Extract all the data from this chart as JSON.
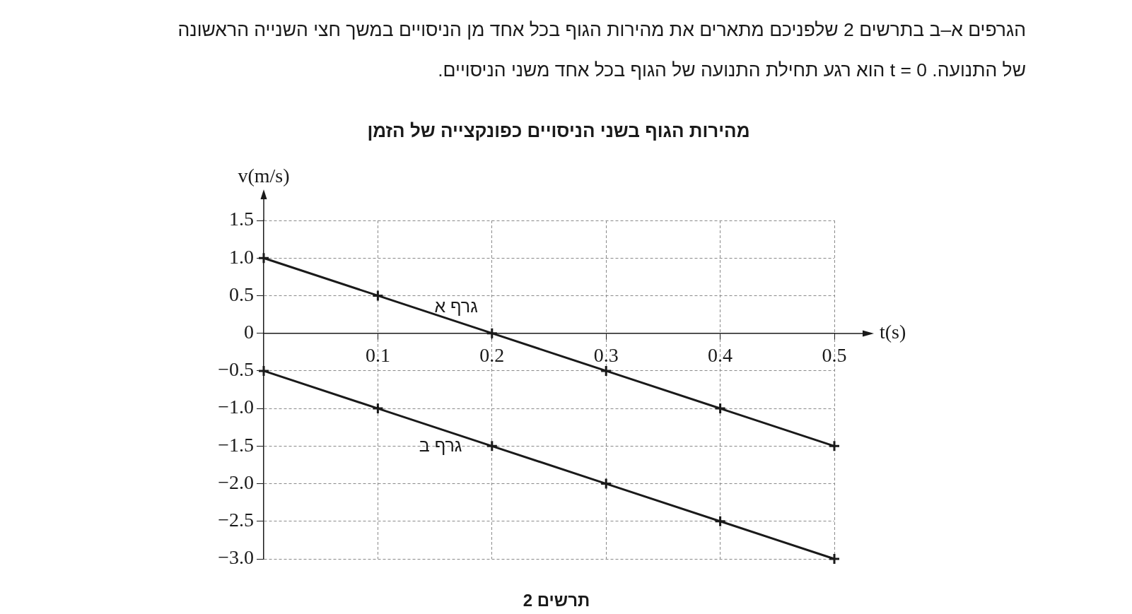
{
  "chart_data": {
    "type": "line",
    "title": "מהירות הגוף בשני הניסויים כפונקצייה של הזמן",
    "xlabel": "t(s)",
    "ylabel": "v(m/s)",
    "annotations": [
      "הגרפים א–ב בתרשים 2 שלפניכם מתארים את מהירות הגוף בכל אחד מן הניסויים במשך חצי השנייה הראשונה של התנועה. t = 0 הוא רגע תחילת התנועה של הגוף בכל אחד משני הניסויים.",
      "תרשים 2"
    ],
    "x": [
      0,
      0.1,
      0.2,
      0.3,
      0.4,
      0.5
    ],
    "series": [
      {
        "name": "גרף א",
        "color": "#1a1a1a",
        "values": [
          1.0,
          0.5,
          0,
          -0.5,
          -1.0,
          -1.5
        ]
      },
      {
        "name": "גרף ב",
        "color": "#1a1a1a",
        "values": [
          -0.5,
          -1.0,
          -1.5,
          -2.0,
          -2.5,
          -3.0
        ]
      }
    ],
    "xlim": [
      0,
      0.5
    ],
    "ylim": [
      -3,
      1.5
    ],
    "xticks": [
      0.1,
      0.2,
      0.3,
      0.4,
      0.5
    ],
    "yticks": [
      {
        "value": -3,
        "label": "−3.0"
      },
      {
        "value": -2.5,
        "label": "−2.5"
      },
      {
        "value": -2,
        "label": "−2.0"
      },
      {
        "value": -1.5,
        "label": "−1.5"
      },
      {
        "value": -1,
        "label": "−1.0"
      },
      {
        "value": -0.5,
        "label": "−0.5"
      },
      0,
      0.5,
      {
        "value": 1,
        "label": "1.0"
      },
      1.5
    ],
    "grid": true,
    "legend": false,
    "marker": "cross",
    "line_style": "solid"
  }
}
